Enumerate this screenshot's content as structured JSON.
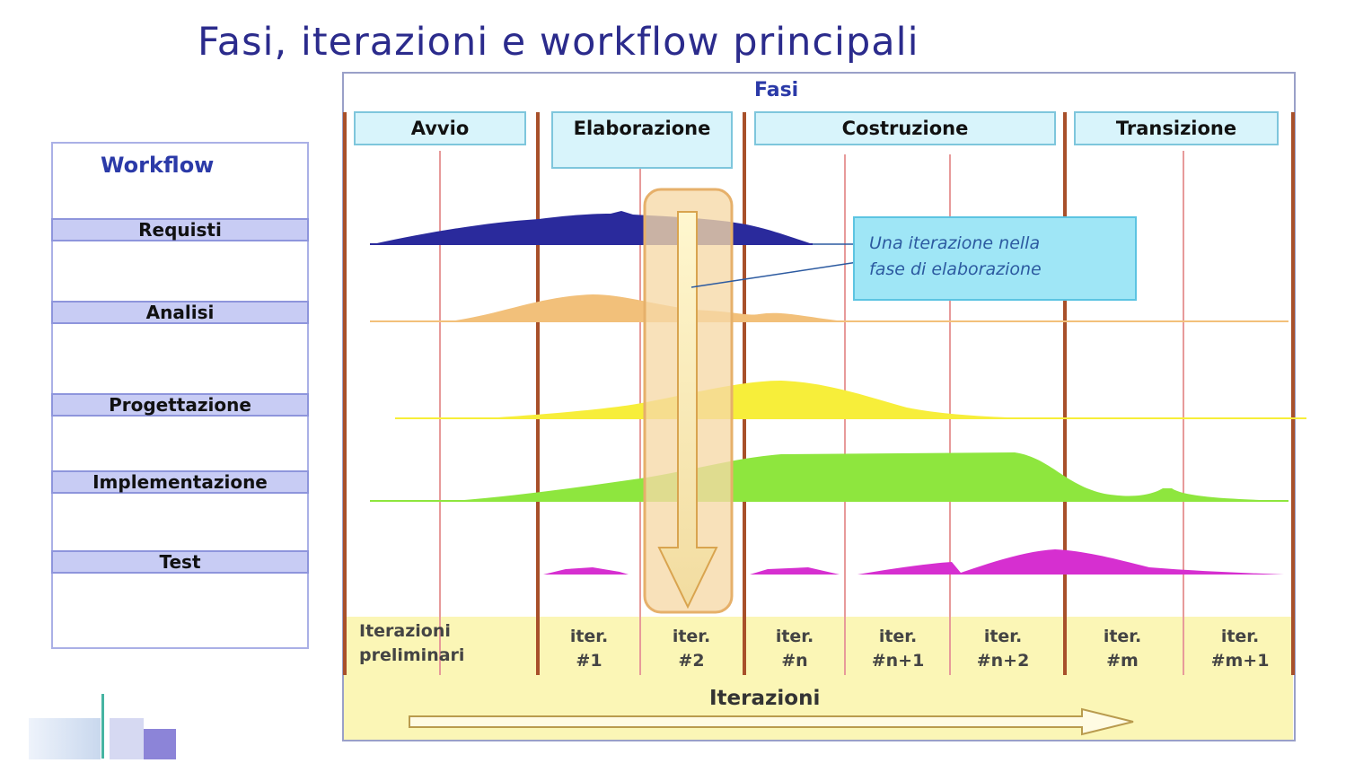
{
  "title": "Fasi, iterazioni e workflow principali",
  "workflow": {
    "header": "Workflow",
    "items": [
      "Requisti",
      "Analisi",
      "Progettazione",
      "Implementazione",
      "Test"
    ]
  },
  "phases": {
    "title": "Fasi",
    "items": [
      "Avvio",
      "Elaborazione",
      "Costruzione",
      "Transizione"
    ]
  },
  "callout": {
    "line1": "Una iterazione nella",
    "line2": "fase di elaborazione"
  },
  "iterations": {
    "title": "Iterazioni",
    "preliminary": [
      "Iterazioni",
      "preliminari"
    ],
    "items": [
      [
        "iter.",
        "#1"
      ],
      [
        "iter.",
        "#2"
      ],
      [
        "iter.",
        "#n"
      ],
      [
        "iter.",
        "#n+1"
      ],
      [
        "iter.",
        "#n+2"
      ],
      [
        "iter.",
        "#m"
      ],
      [
        "iter.",
        "#m+1"
      ]
    ]
  },
  "colors": {
    "requisiti": "#2a2a9c",
    "analisi": "#f2c07a",
    "progettazione": "#f7ee3a",
    "implementazione": "#8ee63e",
    "test": "#d62fd0",
    "phase_line": "#a8502a",
    "iter_line": "#e88a8a"
  }
}
